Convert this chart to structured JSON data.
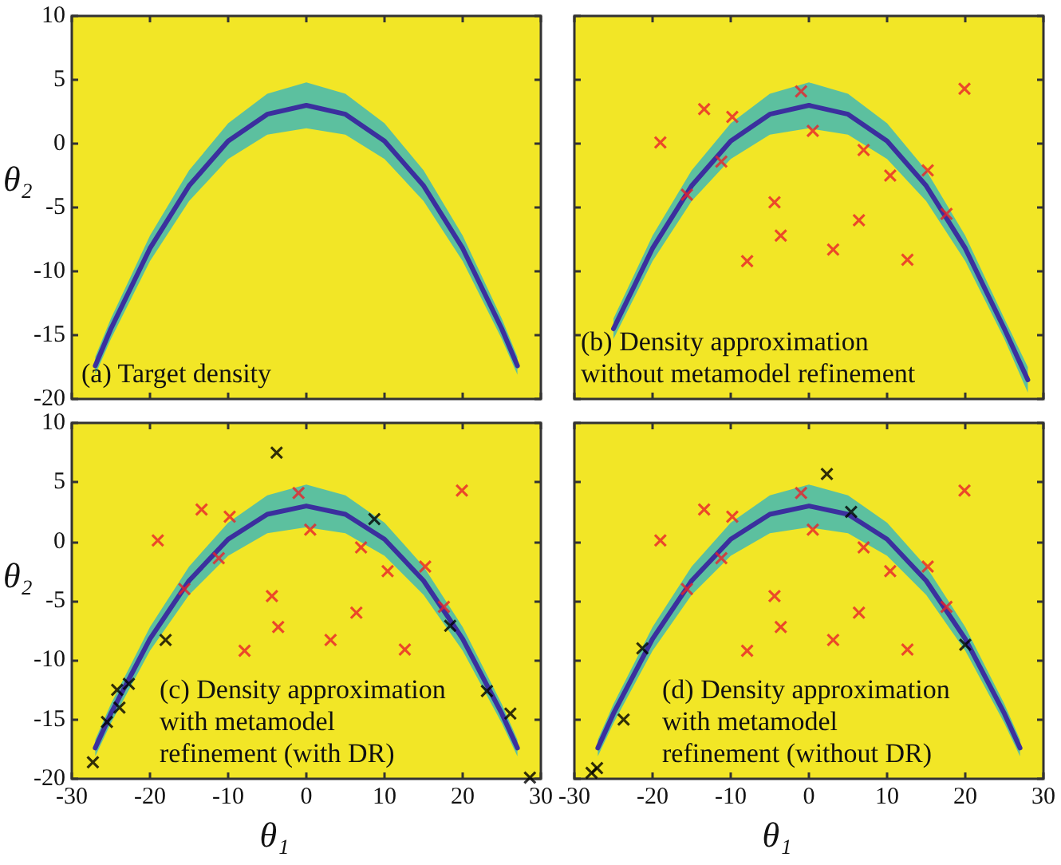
{
  "chart_data": [
    {
      "type": "scatter",
      "ylabel": "θ₂",
      "annotations": [
        "(a) Target density"
      ],
      "xlim": [
        -30,
        30
      ],
      "ylim": [
        -20,
        10
      ],
      "xticks": [
        -30,
        -20,
        -10,
        0,
        10,
        20,
        30
      ],
      "yticks": [
        -20,
        -15,
        -10,
        -5,
        0,
        5,
        10
      ],
      "tick_labels": "y",
      "grid": false,
      "series": [
        {
          "type": "line",
          "color": "#3b2f9e",
          "x": [
            -27,
            -25,
            -20,
            -15,
            -10,
            -5,
            0,
            5,
            10,
            15,
            20,
            25,
            27
          ],
          "values": [
            -17.4,
            -14.5,
            -8.2,
            -3.3,
            0.2,
            2.3,
            3,
            2.3,
            0.2,
            -3.3,
            -8.2,
            -14.5,
            -17.4
          ],
          "lower": [
            -18.1,
            -15.3,
            -9.2,
            -4.5,
            -1.2,
            0.7,
            1.2,
            0.7,
            -1.2,
            -4.5,
            -9.2,
            -15.3,
            -18.1
          ],
          "upper": [
            -16.7,
            -13.7,
            -7.2,
            -2.1,
            1.6,
            3.9,
            4.8,
            3.9,
            1.6,
            -2.1,
            -7.2,
            -13.7,
            -16.7
          ]
        }
      ]
    },
    {
      "type": "scatter",
      "annotations": [
        "(b) Density approximation\nwithout metamodel refinement"
      ],
      "xlim": [
        -30,
        30
      ],
      "ylim": [
        -20,
        10
      ],
      "xticks": [
        -30,
        -20,
        -10,
        0,
        10,
        20,
        30
      ],
      "yticks": [
        -20,
        -15,
        -10,
        -5,
        0,
        5,
        10
      ],
      "tick_labels": false,
      "grid": false,
      "series": [
        {
          "type": "line",
          "color": "#3b2f9e",
          "x": [
            -25,
            -20,
            -15,
            -10,
            -5,
            0,
            5,
            10,
            15,
            20,
            25,
            28
          ],
          "values": [
            -14.5,
            -8.2,
            -3.3,
            0.2,
            2.3,
            3,
            2.3,
            0.2,
            -3.3,
            -8.2,
            -14.5,
            -18.5
          ],
          "lower": [
            -15.3,
            -9.2,
            -4.5,
            -1.2,
            0.7,
            1.2,
            0.7,
            -1.2,
            -4.5,
            -9.2,
            -15.3,
            -19.5
          ],
          "upper": [
            -13.7,
            -7.2,
            -2.1,
            1.6,
            3.9,
            4.8,
            3.9,
            1.6,
            -2.1,
            -7.2,
            -13.7,
            -17.5
          ]
        },
        {
          "color": "#e8202a",
          "marker": "cross",
          "x": [
            -1,
            -13.4,
            -9.8,
            -19,
            0.5,
            -11.2,
            7,
            -15.6,
            10.4,
            15.2,
            -4.4,
            6.4,
            17.6,
            -3.6,
            3.1,
            -7.9,
            12.6,
            19.9
          ],
          "values": [
            4.1,
            2.7,
            2.1,
            0.1,
            1,
            -1.4,
            -0.5,
            -4,
            -2.5,
            -2.1,
            -4.6,
            -6,
            -5.5,
            -7.2,
            -8.3,
            -9.2,
            -9.1,
            4.3
          ]
        }
      ]
    },
    {
      "type": "scatter",
      "xlabel": "θ₁",
      "ylabel": "θ₂",
      "annotations": [
        "(c) Density approximation\nwith metamodel\nrefinement (with DR)"
      ],
      "xlim": [
        -30,
        30
      ],
      "ylim": [
        -20,
        10
      ],
      "xticks": [
        -30,
        -20,
        -10,
        0,
        10,
        20,
        30
      ],
      "yticks": [
        -20,
        -15,
        -10,
        -5,
        0,
        5,
        10
      ],
      "grid": false,
      "series": [
        {
          "type": "line",
          "color": "#3b2f9e",
          "x": [
            -27,
            -25,
            -20,
            -15,
            -10,
            -5,
            0,
            5,
            10,
            15,
            20,
            25,
            27
          ],
          "values": [
            -17.4,
            -14.5,
            -8.2,
            -3.3,
            0.2,
            2.3,
            3,
            2.3,
            0.2,
            -3.3,
            -8.2,
            -14.5,
            -17.4
          ],
          "lower": [
            -18.1,
            -15.3,
            -9.2,
            -4.5,
            -1.2,
            0.7,
            1.2,
            0.7,
            -1.2,
            -4.5,
            -9.2,
            -15.3,
            -18.1
          ],
          "upper": [
            -16.7,
            -13.7,
            -7.2,
            -2.1,
            1.6,
            3.9,
            4.8,
            3.9,
            1.6,
            -2.1,
            -7.2,
            -13.7,
            -16.7
          ]
        },
        {
          "color": "#e8202a",
          "marker": "cross",
          "x": [
            -1,
            -13.4,
            -9.8,
            -19,
            0.5,
            -11.2,
            7,
            -15.6,
            10.4,
            15.2,
            -4.4,
            6.4,
            17.6,
            -3.6,
            3.1,
            -7.9,
            12.6,
            19.9
          ],
          "values": [
            4.1,
            2.7,
            2.1,
            0.1,
            1,
            -1.4,
            -0.5,
            -4,
            -2.5,
            -2.1,
            -4.6,
            -6,
            -5.5,
            -7.2,
            -8.3,
            -9.2,
            -9.1,
            4.3
          ]
        },
        {
          "color": "#000000",
          "marker": "cross",
          "x": [
            -3.8,
            8.7,
            -18,
            18.4,
            -22.7,
            -24.2,
            -23.9,
            -25.5,
            -27.3,
            23.1,
            26.1,
            28.6
          ],
          "values": [
            7.5,
            1.9,
            -8.3,
            -7.1,
            -12,
            -12.5,
            -14,
            -15.2,
            -18.6,
            -12.6,
            -14.5,
            -19.9
          ]
        }
      ]
    },
    {
      "type": "scatter",
      "xlabel": "θ₁",
      "annotations": [
        "(d) Density approximation\nwith metamodel\nrefinement (without DR)"
      ],
      "xlim": [
        -30,
        30
      ],
      "ylim": [
        -20,
        10
      ],
      "xticks": [
        -30,
        -20,
        -10,
        0,
        10,
        20,
        30
      ],
      "yticks": [
        -20,
        -15,
        -10,
        -5,
        0,
        5,
        10
      ],
      "tick_labels": "x",
      "grid": false,
      "series": [
        {
          "type": "line",
          "color": "#3b2f9e",
          "x": [
            -27,
            -25,
            -20,
            -15,
            -10,
            -5,
            0,
            5,
            10,
            15,
            20,
            25,
            27
          ],
          "values": [
            -17.4,
            -14.5,
            -8.2,
            -3.3,
            0.2,
            2.3,
            3,
            2.3,
            0.2,
            -3.3,
            -8.2,
            -14.5,
            -17.4
          ],
          "lower": [
            -18.1,
            -15.3,
            -9.2,
            -4.5,
            -1.2,
            0.7,
            1.2,
            0.7,
            -1.2,
            -4.5,
            -9.2,
            -15.3,
            -18.1
          ],
          "upper": [
            -16.7,
            -13.7,
            -7.2,
            -2.1,
            1.6,
            3.9,
            4.8,
            3.9,
            1.6,
            -2.1,
            -7.2,
            -13.7,
            -16.7
          ]
        },
        {
          "color": "#e8202a",
          "marker": "cross",
          "x": [
            -1,
            -13.4,
            -9.8,
            -19,
            0.5,
            -11.2,
            7,
            -15.6,
            10.4,
            15.2,
            -4.4,
            6.4,
            17.6,
            -3.6,
            3.1,
            -7.9,
            12.6,
            19.9
          ],
          "values": [
            4.1,
            2.7,
            2.1,
            0.1,
            1,
            -1.4,
            -0.5,
            -4,
            -2.5,
            -2.1,
            -4.6,
            -6,
            -5.5,
            -7.2,
            -8.3,
            -9.2,
            -9.1,
            4.3
          ]
        },
        {
          "color": "#000000",
          "marker": "cross",
          "x": [
            2.3,
            5.4,
            -21.3,
            20,
            -23.7,
            -27.1,
            -27.8
          ],
          "values": [
            5.7,
            2.5,
            -9,
            -8.7,
            -15,
            -19.1,
            -19.5
          ]
        }
      ]
    }
  ]
}
